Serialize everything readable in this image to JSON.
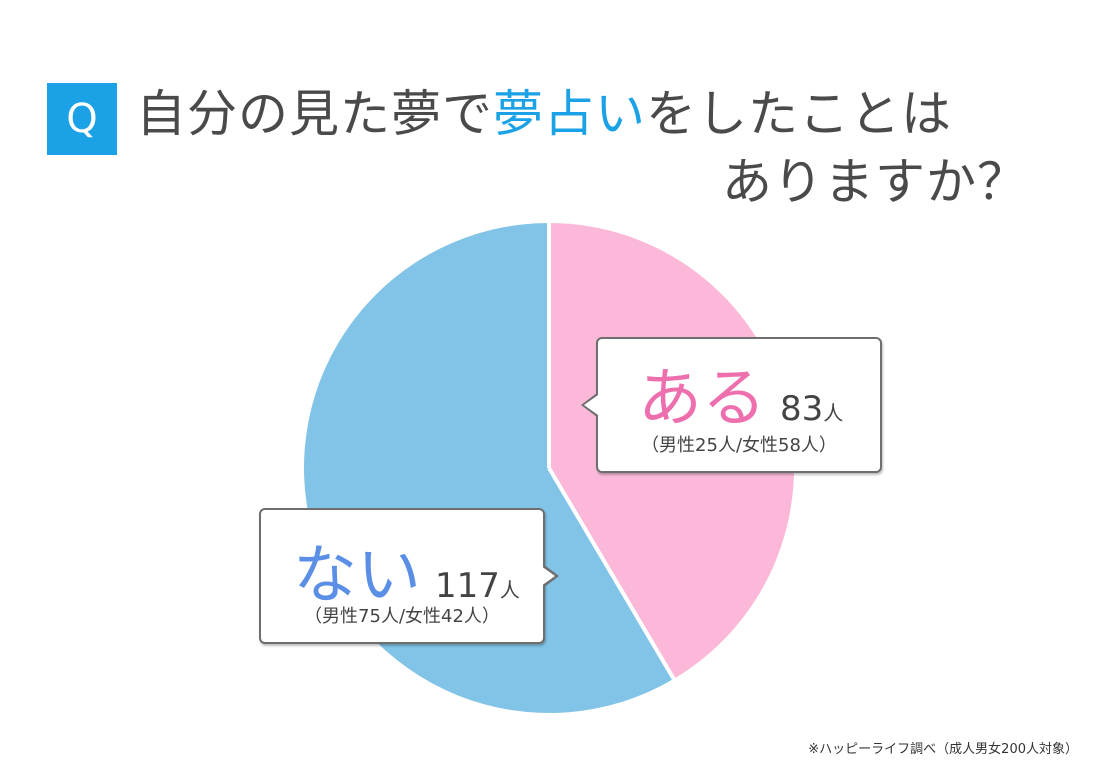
{
  "question": {
    "badge": "Q",
    "line1_pre": "自分の見た夢で",
    "line1_highlight": "夢占い",
    "line1_post": "をしたことは",
    "line2": "ありますか？"
  },
  "chart_data": {
    "type": "pie",
    "start": "12 o'clock, clockwise",
    "slices": [
      {
        "label": "ある",
        "value": 83,
        "unit": "人",
        "detail": "（男性25人/女性58人）",
        "color": "#fbb8d8"
      },
      {
        "label": "ない",
        "value": 117,
        "unit": "人",
        "detail": "（男性75人/女性42人）",
        "color": "#82c4e7"
      }
    ]
  },
  "colors": {
    "accent": "#1aa1e6",
    "aru_text": "#ee6fae",
    "nai_text": "#5b8fe6"
  },
  "footnote": "※ハッピーライフ調べ（成人男女200人対象）"
}
